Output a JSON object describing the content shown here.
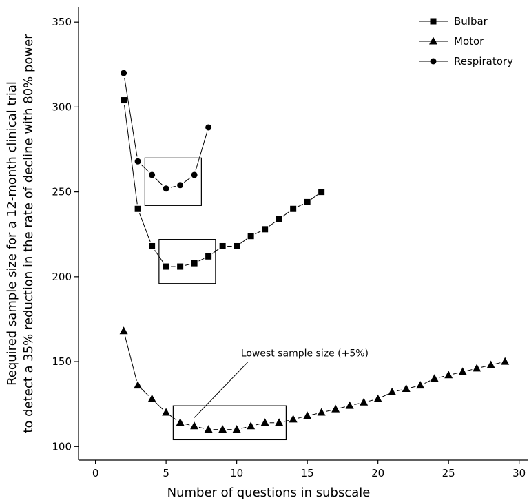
{
  "chart_data": {
    "type": "scatter",
    "title": "",
    "xlabel": "Number of questions in subscale",
    "ylabel_lines": [
      "Required sample size for a 12-month clinical trial",
      "to detect a 35% reduction in the rate of decline with 80% power"
    ],
    "xlim": [
      -1.2,
      30.6
    ],
    "ylim": [
      92,
      359
    ],
    "xticks": [
      0,
      5,
      10,
      15,
      20,
      25,
      30
    ],
    "yticks": [
      100,
      150,
      200,
      250,
      300,
      350
    ],
    "grid": false,
    "legend_position": "top-right",
    "series": [
      {
        "name": "Bulbar",
        "marker": "square",
        "x": [
          2,
          3,
          4,
          5,
          6,
          7,
          8,
          9,
          10,
          11,
          12,
          13,
          14,
          15,
          16
        ],
        "y": [
          304,
          240,
          218,
          206,
          206,
          208,
          212,
          218,
          218,
          224,
          228,
          234,
          240,
          244,
          250
        ]
      },
      {
        "name": "Motor",
        "marker": "triangle",
        "x": [
          2,
          3,
          4,
          5,
          6,
          7,
          8,
          9,
          10,
          11,
          12,
          13,
          14,
          15,
          16,
          17,
          18,
          19,
          20,
          21,
          22,
          23,
          24,
          25,
          26,
          27,
          28,
          29
        ],
        "y": [
          168,
          136,
          128,
          120,
          114,
          112,
          110,
          110,
          110,
          112,
          114,
          114,
          116,
          118,
          120,
          122,
          124,
          126,
          128,
          132,
          134,
          136,
          140,
          142,
          144,
          146,
          148,
          150
        ]
      },
      {
        "name": "Respiratory",
        "marker": "circle",
        "x": [
          2,
          3,
          4,
          5,
          6,
          7,
          8
        ],
        "y": [
          320,
          268,
          260,
          252,
          254,
          260,
          288
        ]
      }
    ],
    "boxes": [
      {
        "series": "Respiratory",
        "x_range": [
          3.5,
          7.5
        ],
        "y_range": [
          242,
          270
        ]
      },
      {
        "series": "Bulbar",
        "x_range": [
          4.5,
          8.5
        ],
        "y_range": [
          196,
          222
        ]
      },
      {
        "series": "Motor",
        "x_range": [
          5.5,
          13.5
        ],
        "y_range": [
          104,
          124
        ]
      }
    ],
    "annotation": {
      "text": "Lowest sample size (+5%)",
      "text_at": [
        10.3,
        153
      ],
      "arrow_to": [
        7.0,
        117
      ]
    }
  }
}
